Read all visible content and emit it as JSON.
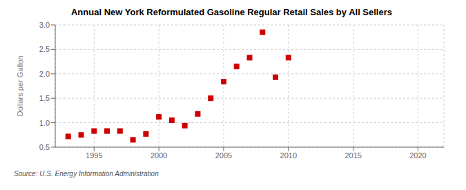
{
  "chart_data": {
    "type": "scatter",
    "title": "Annual New York Reformulated Gasoline Regular Retail Sales by All Sellers",
    "y_label": "Dollars per Gallon",
    "annotations": [
      "Source: U.S. Energy Information Administration"
    ],
    "x": [
      1993,
      1994,
      1995,
      1996,
      1997,
      1998,
      1999,
      2000,
      2001,
      2002,
      2003,
      2004,
      2005,
      2006,
      2007,
      2008,
      2009,
      2010
    ],
    "values": [
      0.72,
      0.75,
      0.83,
      0.83,
      0.83,
      0.65,
      0.77,
      1.12,
      1.05,
      0.94,
      1.18,
      1.5,
      1.84,
      2.15,
      2.33,
      2.85,
      1.93,
      2.33
    ],
    "color": "#cc0000",
    "marker": "square",
    "xlim": [
      1992,
      2022
    ],
    "xticks": [
      1995,
      2000,
      2005,
      2010,
      2015,
      2020
    ],
    "ylim": [
      0.5,
      3.0
    ],
    "yticks": [
      0.5,
      {
        "value": 1,
        "label": "1.0"
      },
      1.5,
      {
        "value": 2,
        "label": "2.0"
      },
      2.5,
      {
        "value": 3,
        "label": "3.0"
      }
    ],
    "grid": true
  }
}
